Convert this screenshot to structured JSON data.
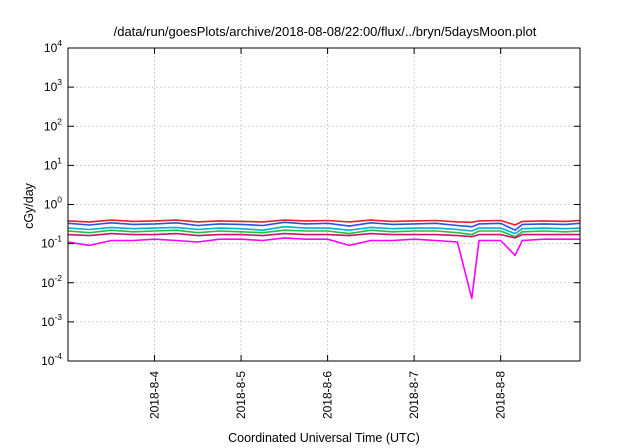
{
  "chart_data": {
    "type": "line",
    "title": "/data/run/goesPlots/archive/2018-08-08/22:00/flux/../bryn/5daysMoon.plot",
    "xlabel": "Coordinated Universal Time (UTC)",
    "ylabel": "cGy/day",
    "yscale": "log",
    "ylim": [
      0.0001,
      10000
    ],
    "xlim": [
      "2018-08-03T00:00",
      "2018-08-08T22:00"
    ],
    "grid": true,
    "legend": "none",
    "y_ticks": [
      {
        "base": "10",
        "exp": "-4",
        "value": 0.0001
      },
      {
        "base": "10",
        "exp": "-3",
        "value": 0.001
      },
      {
        "base": "10",
        "exp": "-2",
        "value": 0.01
      },
      {
        "base": "10",
        "exp": "-1",
        "value": 0.1
      },
      {
        "base": "10",
        "exp": "0",
        "value": 1
      },
      {
        "base": "10",
        "exp": "1",
        "value": 10
      },
      {
        "base": "10",
        "exp": "2",
        "value": 100
      },
      {
        "base": "10",
        "exp": "3",
        "value": 1000
      },
      {
        "base": "10",
        "exp": "4",
        "value": 10000
      }
    ],
    "x_ticks": [
      {
        "label": "2018-8-4",
        "value": "2018-08-04T00:00"
      },
      {
        "label": "2018-8-5",
        "value": "2018-08-05T00:00"
      },
      {
        "label": "2018-8-6",
        "value": "2018-08-06T00:00"
      },
      {
        "label": "2018-8-7",
        "value": "2018-08-07T00:00"
      },
      {
        "label": "2018-8-8",
        "value": "2018-08-08T00:00"
      }
    ],
    "x": [
      "2018-08-03T00:00",
      "2018-08-03T06:00",
      "2018-08-03T12:00",
      "2018-08-03T18:00",
      "2018-08-04T00:00",
      "2018-08-04T06:00",
      "2018-08-04T12:00",
      "2018-08-04T18:00",
      "2018-08-05T00:00",
      "2018-08-05T06:00",
      "2018-08-05T12:00",
      "2018-08-05T18:00",
      "2018-08-06T00:00",
      "2018-08-06T06:00",
      "2018-08-06T12:00",
      "2018-08-06T18:00",
      "2018-08-07T00:00",
      "2018-08-07T06:00",
      "2018-08-07T12:00",
      "2018-08-07T16:00",
      "2018-08-07T18:00",
      "2018-08-08T00:00",
      "2018-08-08T04:00",
      "2018-08-08T06:00",
      "2018-08-08T12:00",
      "2018-08-08T18:00",
      "2018-08-08T22:00"
    ],
    "series": [
      {
        "color": "#e8201f",
        "values": [
          0.38,
          0.36,
          0.4,
          0.37,
          0.38,
          0.4,
          0.36,
          0.38,
          0.37,
          0.36,
          0.4,
          0.38,
          0.39,
          0.36,
          0.4,
          0.37,
          0.38,
          0.39,
          0.36,
          0.35,
          0.38,
          0.39,
          0.3,
          0.37,
          0.38,
          0.37,
          0.39
        ]
      },
      {
        "color": "#3050e0",
        "values": [
          0.33,
          0.3,
          0.34,
          0.31,
          0.32,
          0.34,
          0.29,
          0.32,
          0.31,
          0.29,
          0.35,
          0.32,
          0.33,
          0.28,
          0.34,
          0.31,
          0.32,
          0.33,
          0.29,
          0.27,
          0.32,
          0.33,
          0.22,
          0.31,
          0.32,
          0.31,
          0.33
        ]
      },
      {
        "color": "#00b0d0",
        "values": [
          0.25,
          0.23,
          0.26,
          0.24,
          0.25,
          0.26,
          0.23,
          0.25,
          0.24,
          0.22,
          0.27,
          0.25,
          0.25,
          0.22,
          0.26,
          0.24,
          0.25,
          0.25,
          0.23,
          0.21,
          0.25,
          0.25,
          0.18,
          0.24,
          0.25,
          0.24,
          0.25
        ]
      },
      {
        "color": "#20c040",
        "values": [
          0.21,
          0.19,
          0.22,
          0.2,
          0.21,
          0.22,
          0.19,
          0.21,
          0.2,
          0.19,
          0.22,
          0.21,
          0.21,
          0.18,
          0.22,
          0.2,
          0.21,
          0.21,
          0.19,
          0.17,
          0.21,
          0.21,
          0.15,
          0.2,
          0.21,
          0.2,
          0.21
        ]
      },
      {
        "color": "#d0106a",
        "values": [
          0.17,
          0.16,
          0.18,
          0.17,
          0.17,
          0.18,
          0.16,
          0.17,
          0.17,
          0.16,
          0.18,
          0.17,
          0.17,
          0.16,
          0.18,
          0.17,
          0.17,
          0.17,
          0.16,
          0.15,
          0.17,
          0.17,
          0.14,
          0.17,
          0.17,
          0.17,
          0.17
        ]
      },
      {
        "color": "#ff00ff",
        "values": [
          0.11,
          0.09,
          0.12,
          0.12,
          0.13,
          0.12,
          0.11,
          0.13,
          0.13,
          0.12,
          0.14,
          0.13,
          0.13,
          0.09,
          0.12,
          0.12,
          0.13,
          0.12,
          0.11,
          0.004,
          0.12,
          0.12,
          0.05,
          0.12,
          0.13,
          0.13,
          0.13
        ]
      }
    ]
  }
}
